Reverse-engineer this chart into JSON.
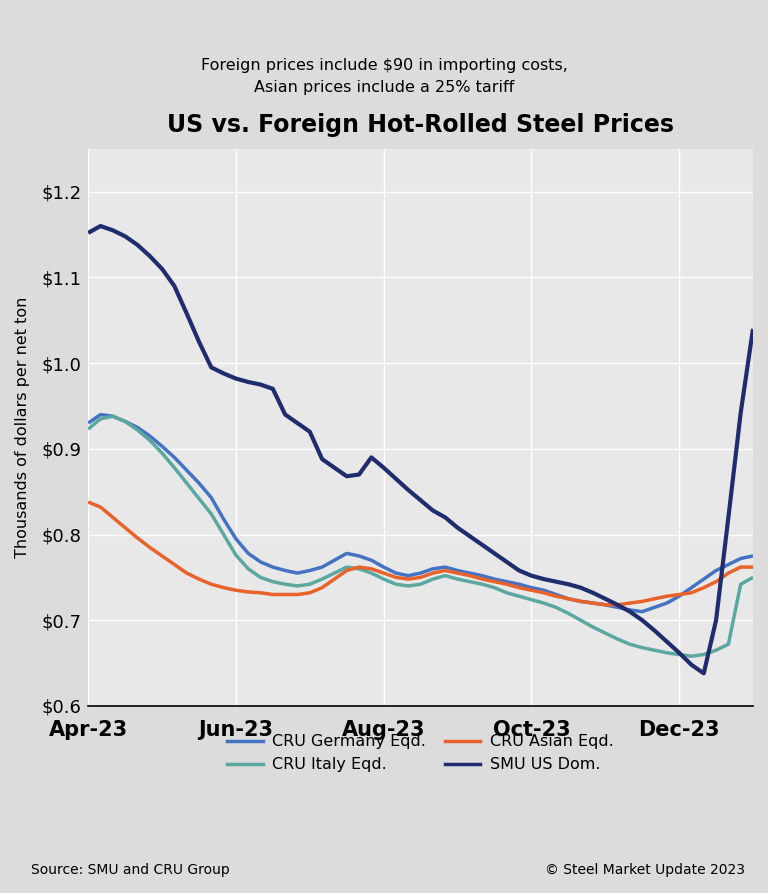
{
  "title": "US vs. Foreign Hot-Rolled Steel Prices",
  "subtitle": "Foreign prices include $90 in importing costs,\nAsian prices include a 25% tariff",
  "ylabel": "Thousands of dollars per net ton",
  "source_left": "Source: SMU and CRU Group",
  "source_right": "© Steel Market Update 2023",
  "background_color": "#dcdcdc",
  "plot_bg_color": "#e8e8e8",
  "ylim": [
    0.6,
    1.25
  ],
  "yticks": [
    0.6,
    0.7,
    0.8,
    0.9,
    1.0,
    1.1,
    1.2
  ],
  "ytick_labels": [
    "$0.6",
    "$0.7",
    "$0.8",
    "$0.9",
    "$1.0",
    "$1.1",
    "$1.2"
  ],
  "xtick_labels": [
    "Apr-23",
    "Jun-23",
    "Aug-23",
    "Oct-23",
    "Dec-23"
  ],
  "series_order": [
    "CRU Germany Eqd.",
    "CRU Italy Eqd.",
    "CRU Asian Eqd.",
    "SMU US Dom."
  ],
  "series": {
    "CRU Germany Eqd.": {
      "color": "#4472C4",
      "linewidth": 2.5,
      "values": [
        0.93,
        0.94,
        0.938,
        0.932,
        0.925,
        0.915,
        0.903,
        0.89,
        0.875,
        0.86,
        0.843,
        0.818,
        0.795,
        0.778,
        0.768,
        0.762,
        0.758,
        0.755,
        0.758,
        0.762,
        0.77,
        0.778,
        0.775,
        0.77,
        0.762,
        0.755,
        0.752,
        0.755,
        0.76,
        0.762,
        0.758,
        0.755,
        0.752,
        0.748,
        0.745,
        0.742,
        0.738,
        0.735,
        0.73,
        0.725,
        0.722,
        0.72,
        0.718,
        0.715,
        0.712,
        0.71,
        0.715,
        0.72,
        0.728,
        0.738,
        0.748,
        0.758,
        0.765,
        0.772,
        0.775
      ]
    },
    "CRU Italy Eqd.": {
      "color": "#5BA8A0",
      "linewidth": 2.5,
      "values": [
        0.923,
        0.935,
        0.938,
        0.932,
        0.922,
        0.91,
        0.895,
        0.878,
        0.86,
        0.842,
        0.824,
        0.8,
        0.776,
        0.76,
        0.75,
        0.745,
        0.742,
        0.74,
        0.742,
        0.748,
        0.755,
        0.762,
        0.76,
        0.755,
        0.748,
        0.742,
        0.74,
        0.742,
        0.748,
        0.752,
        0.748,
        0.745,
        0.742,
        0.738,
        0.732,
        0.728,
        0.724,
        0.72,
        0.715,
        0.708,
        0.7,
        0.692,
        0.685,
        0.678,
        0.672,
        0.668,
        0.665,
        0.662,
        0.66,
        0.658,
        0.66,
        0.665,
        0.672,
        0.742,
        0.75
      ]
    },
    "CRU Asian Eqd.": {
      "color": "#E8622A",
      "linewidth": 2.5,
      "values": [
        0.838,
        0.832,
        0.82,
        0.808,
        0.796,
        0.785,
        0.775,
        0.765,
        0.755,
        0.748,
        0.742,
        0.738,
        0.735,
        0.733,
        0.732,
        0.73,
        0.73,
        0.73,
        0.732,
        0.738,
        0.748,
        0.758,
        0.762,
        0.76,
        0.755,
        0.75,
        0.748,
        0.75,
        0.755,
        0.758,
        0.755,
        0.752,
        0.748,
        0.745,
        0.742,
        0.738,
        0.735,
        0.732,
        0.728,
        0.725,
        0.722,
        0.72,
        0.718,
        0.718,
        0.72,
        0.722,
        0.725,
        0.728,
        0.73,
        0.732,
        0.738,
        0.745,
        0.755,
        0.762,
        0.762
      ]
    },
    "SMU US Dom.": {
      "color": "#1F2D6E",
      "linewidth": 3.0,
      "values": [
        1.152,
        1.16,
        1.155,
        1.148,
        1.138,
        1.125,
        1.11,
        1.09,
        1.058,
        1.025,
        0.995,
        0.988,
        0.982,
        0.978,
        0.975,
        0.97,
        0.94,
        0.93,
        0.92,
        0.888,
        0.878,
        0.868,
        0.87,
        0.89,
        0.878,
        0.865,
        0.852,
        0.84,
        0.828,
        0.82,
        0.808,
        0.798,
        0.788,
        0.778,
        0.768,
        0.758,
        0.752,
        0.748,
        0.745,
        0.742,
        0.738,
        0.732,
        0.725,
        0.718,
        0.71,
        0.7,
        0.688,
        0.675,
        0.662,
        0.648,
        0.638,
        0.7,
        0.82,
        0.942,
        1.04
      ]
    }
  },
  "n_points": 55
}
